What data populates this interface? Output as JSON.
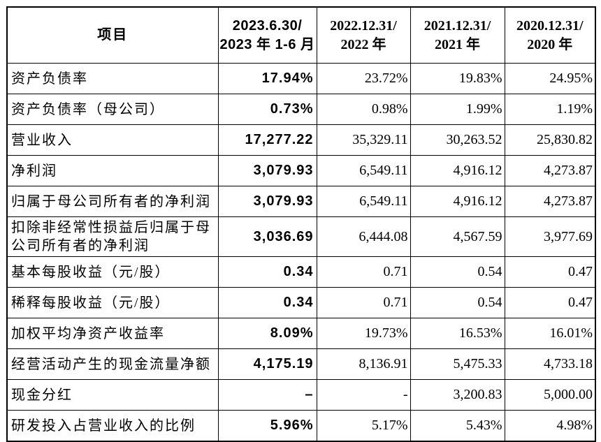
{
  "table": {
    "columns": [
      {
        "label": "项目"
      },
      {
        "line1": "2023.6.30/",
        "line2": "2023 年 1-6 月"
      },
      {
        "line1": "2022.12.31/",
        "line2": "2022 年"
      },
      {
        "line1": "2021.12.31/",
        "line2": "2021 年"
      },
      {
        "line1": "2020.12.31/",
        "line2": "2020 年"
      }
    ],
    "rows": [
      {
        "label": "资产负债率",
        "values": [
          "17.94%",
          "23.72%",
          "19.83%",
          "24.95%"
        ]
      },
      {
        "label": "资产负债率（母公司）",
        "values": [
          "0.73%",
          "0.98%",
          "1.99%",
          "1.19%"
        ]
      },
      {
        "label": "营业收入",
        "values": [
          "17,277.22",
          "35,329.11",
          "30,263.52",
          "25,830.82"
        ]
      },
      {
        "label": "净利润",
        "values": [
          "3,079.93",
          "6,549.11",
          "4,916.12",
          "4,273.87"
        ]
      },
      {
        "label": "归属于母公司所有者的净利润",
        "values": [
          "3,079.93",
          "6,549.11",
          "4,916.12",
          "4,273.87"
        ]
      },
      {
        "label": "扣除非经常性损益后归属于母公司所有者的净利润",
        "values": [
          "3,036.69",
          "6,444.08",
          "4,567.59",
          "3,977.69"
        ]
      },
      {
        "label": "基本每股收益（元/股）",
        "values": [
          "0.34",
          "0.71",
          "0.54",
          "0.47"
        ]
      },
      {
        "label": "稀释每股收益（元/股）",
        "values": [
          "0.34",
          "0.71",
          "0.54",
          "0.47"
        ]
      },
      {
        "label": "加权平均净资产收益率",
        "values": [
          "8.09%",
          "19.73%",
          "16.53%",
          "16.01%"
        ]
      },
      {
        "label": "经营活动产生的现金流量净额",
        "values": [
          "4,175.19",
          "8,136.91",
          "5,475.33",
          "4,733.18"
        ]
      },
      {
        "label": "现金分红",
        "values": [
          "–",
          "-",
          "3,200.83",
          "5,000.00"
        ]
      },
      {
        "label": "研发投入占营业收入的比例",
        "values": [
          "5.96%",
          "5.17%",
          "5.43%",
          "4.98%"
        ]
      }
    ]
  }
}
